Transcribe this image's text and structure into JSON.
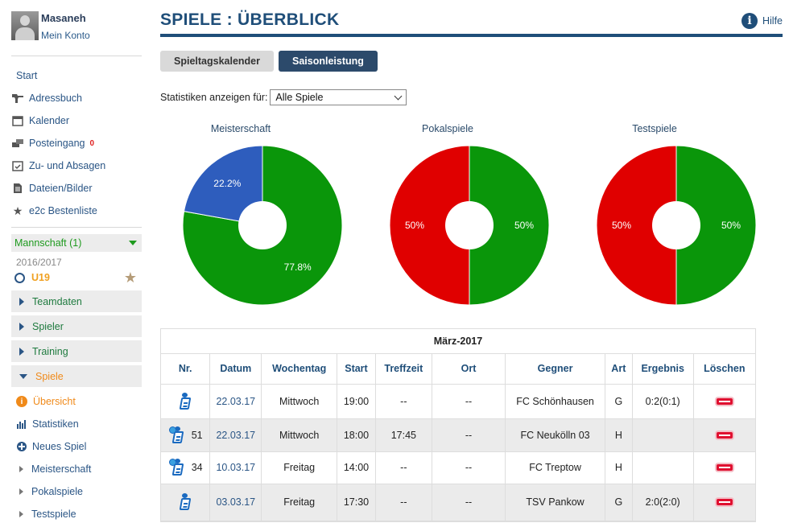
{
  "user": {
    "name": "Masaneh",
    "account_link": "Mein Konto"
  },
  "nav": {
    "start": "Start",
    "items": [
      {
        "label": "Adressbuch",
        "icon": "address-book-icon"
      },
      {
        "label": "Kalender",
        "icon": "calendar-icon"
      },
      {
        "label": "Posteingang",
        "icon": "inbox-icon",
        "badge": "0"
      },
      {
        "label": "Zu- und Absagen",
        "icon": "rsvp-icon"
      },
      {
        "label": "Dateien/Bilder",
        "icon": "files-icon"
      },
      {
        "label": "e2c Bestenliste",
        "icon": "star-icon"
      }
    ]
  },
  "team": {
    "label": "Mannschaft (1)",
    "season": "2016/2017",
    "name": "U19",
    "sections": [
      "Teamdaten",
      "Spieler",
      "Training"
    ],
    "open_section": "Spiele",
    "sub_items": [
      "Übersicht",
      "Statistiken",
      "Neues Spiel",
      "Meisterschaft",
      "Pokalspiele",
      "Testspiele"
    ]
  },
  "page": {
    "title": "SPIELE : ÜBERBLICK",
    "help": "Hilfe",
    "tabs": [
      "Spieltagskalender",
      "Saisonleistung"
    ],
    "filter_label": "Statistiken anzeigen für:",
    "filter_value": "Alle Spiele"
  },
  "colors": {
    "win": "#0a960a",
    "loss": "#e00000",
    "draw": "#2e5dbd",
    "accent": "#1f4e79"
  },
  "chart_data": [
    {
      "type": "pie",
      "title": "Meisterschaft",
      "slices": [
        {
          "value": 77.8,
          "label": "77.8%",
          "color": "#0a960a"
        },
        {
          "value": 22.2,
          "label": "22.2%",
          "color": "#2e5dbd"
        }
      ]
    },
    {
      "type": "pie",
      "title": "Pokalspiele",
      "slices": [
        {
          "value": 50,
          "label": "50%",
          "color": "#0a960a"
        },
        {
          "value": 50,
          "label": "50%",
          "color": "#e00000"
        }
      ]
    },
    {
      "type": "pie",
      "title": "Testspiele",
      "slices": [
        {
          "value": 50,
          "label": "50%",
          "color": "#0a960a"
        },
        {
          "value": 50,
          "label": "50%",
          "color": "#e00000"
        }
      ]
    }
  ],
  "table": {
    "month": "März-2017",
    "headers": [
      "Nr.",
      "Datum",
      "Wochentag",
      "Start",
      "Treffzeit",
      "Ort",
      "Gegner",
      "Art",
      "Ergebnis",
      "Löschen"
    ],
    "rows": [
      {
        "nr": "",
        "medal": false,
        "datum": "22.03.17",
        "wochentag": "Mittwoch",
        "start": "19:00",
        "treffzeit": "--",
        "ort": "--",
        "gegner": "FC Schönhausen",
        "art": "G",
        "ergebnis": "0:2(0:1)"
      },
      {
        "nr": "51",
        "medal": true,
        "datum": "22.03.17",
        "wochentag": "Mittwoch",
        "start": "18:00",
        "treffzeit": "17:45",
        "ort": "--",
        "gegner": "FC Neukölln 03",
        "art": "H",
        "ergebnis": ""
      },
      {
        "nr": "34",
        "medal": true,
        "datum": "10.03.17",
        "wochentag": "Freitag",
        "start": "14:00",
        "treffzeit": "--",
        "ort": "--",
        "gegner": "FC Treptow",
        "art": "H",
        "ergebnis": ""
      },
      {
        "nr": "",
        "medal": false,
        "datum": "03.03.17",
        "wochentag": "Freitag",
        "start": "17:30",
        "treffzeit": "--",
        "ort": "--",
        "gegner": "TSV Pankow",
        "art": "G",
        "ergebnis": "2:0(2:0)"
      }
    ]
  }
}
